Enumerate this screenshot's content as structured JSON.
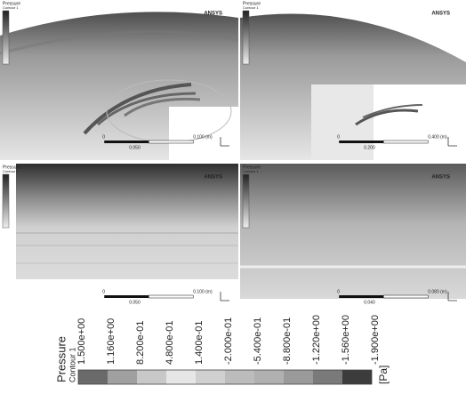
{
  "panels": [
    {
      "title": "Pressure",
      "subtitle": "Contour 1",
      "brand": "ANSYS",
      "scale_zero": "0",
      "scale_end": "0.100 (m)",
      "scale_mid": "0.050"
    },
    {
      "title": "Pressure",
      "subtitle": "Contour 1",
      "brand": "ANSYS",
      "scale_zero": "0",
      "scale_end": "0.400 (m)",
      "scale_mid": "0.200"
    },
    {
      "title": "Pressure",
      "subtitle": "Contour 1",
      "brand": "ANSYS",
      "scale_zero": "0",
      "scale_end": "0.100 (m)",
      "scale_mid": "0.050"
    },
    {
      "title": "Pressure",
      "subtitle": "Contour 1",
      "brand": "ANSYS",
      "scale_zero": "0",
      "scale_end": "0.080 (m)",
      "scale_mid": "0.040"
    }
  ],
  "colorbar": {
    "title": "Pressure",
    "subtitle": "Contour 1",
    "unit": "[Pa]",
    "labels": [
      "1.500e+00",
      "1.160e+00",
      "8.200e-01",
      "4.800e-01",
      "1.400e-01",
      "-2.000e-01",
      "-5.400e-01",
      "-8.800e-01",
      "-1.220e+00",
      "-1.560e+00",
      "-1.900e+00"
    ]
  }
}
